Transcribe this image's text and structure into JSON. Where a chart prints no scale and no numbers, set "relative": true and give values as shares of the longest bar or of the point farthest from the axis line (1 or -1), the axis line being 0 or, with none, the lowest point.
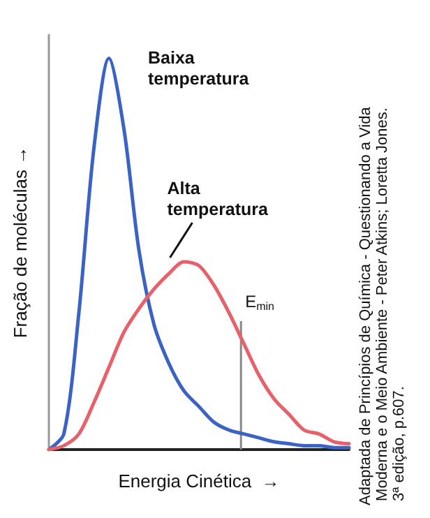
{
  "chart_data": {
    "type": "line",
    "relative": true,
    "xlabel": "Energia Cinética  →",
    "ylabel": "Fração de moléculas →",
    "categories": [
      null,
      null,
      null,
      null,
      null,
      null,
      null,
      null,
      null,
      null,
      null,
      null,
      null,
      null,
      null,
      null,
      null,
      null,
      null,
      null,
      null
    ],
    "series": [
      {
        "name": "Baixa temperatura",
        "color": "#3b63c4",
        "values": [
          0,
          0.04,
          0.35,
          0.77,
          1.0,
          0.82,
          0.51,
          0.32,
          0.22,
          0.15,
          0.11,
          0.07,
          0.05,
          0.04,
          0.03,
          0.02,
          0.015,
          0.01,
          0.01,
          0.005,
          0.005
        ]
      },
      {
        "name": "Alta temperatura",
        "color": "#e8606a",
        "values": [
          0,
          0.01,
          0.04,
          0.12,
          0.21,
          0.3,
          0.36,
          0.41,
          0.45,
          0.48,
          0.47,
          0.42,
          0.35,
          0.27,
          0.19,
          0.13,
          0.09,
          0.05,
          0.04,
          0.02,
          0.015
        ]
      }
    ],
    "annotations": [
      "E$_{min}$",
      "Adaptada de Princípios de Química - Questionando a Vida Moderna e o Meio Ambiente - Peter Atkins; Loretta Jones. 3ª edição, p.607."
    ],
    "grid": false,
    "legend": false,
    "marker": "none",
    "line_style": "solid"
  }
}
